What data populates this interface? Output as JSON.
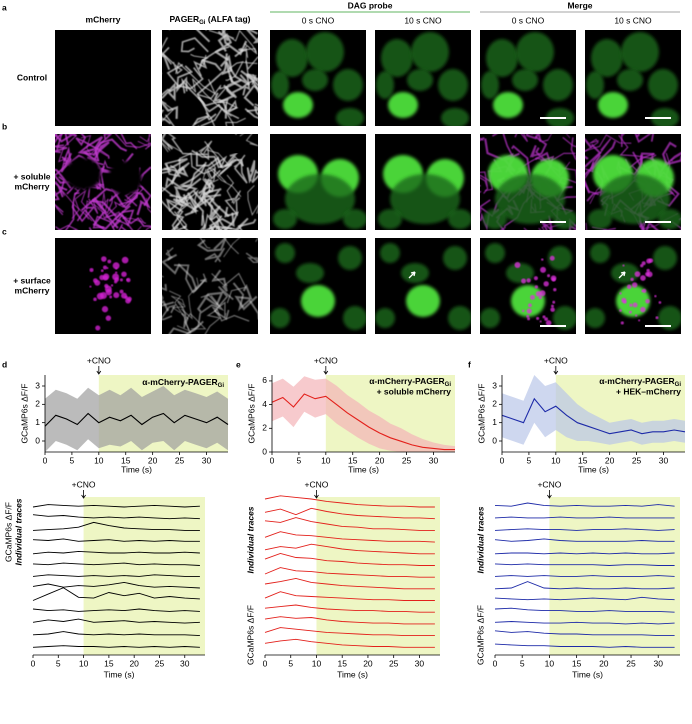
{
  "figure": {
    "panel_letters": [
      "a",
      "b",
      "c",
      "d",
      "e",
      "f"
    ],
    "headers": {
      "mcherry": "mCherry",
      "pager": "PAGER",
      "pager_sub": "Gi",
      "pager_rest": " (ALFA tag)",
      "dag": "DAG probe",
      "merge": "Merge",
      "dag_t0": "0 s CNO",
      "dag_t10": "10 s CNO",
      "merge_t0": "0 s CNO",
      "merge_t10": "10 s CNO"
    },
    "rows": [
      {
        "label": [
          "Control"
        ]
      },
      {
        "label": [
          "+ soluble",
          "mCherry"
        ]
      },
      {
        "label": [
          "+ surface",
          "mCherry"
        ]
      }
    ]
  },
  "charts": [
    {
      "type": "line",
      "title": "α-mCherry-PAGER",
      "title_sub": "Gi",
      "color": "#000000",
      "band_color": "#9e9e9e",
      "shade_color": "#eef6c4",
      "cno_time": 10,
      "top": {
        "ylabel": "GCaMP6s ΔF/F",
        "xlabel": "Time (s)",
        "annotation": "+CNO",
        "xlim": [
          0,
          34
        ],
        "ylim": [
          -0.6,
          3.6
        ],
        "xticks": [
          0,
          5,
          10,
          15,
          20,
          25,
          30
        ],
        "yticks": [
          0,
          1,
          2,
          3
        ],
        "x": [
          0,
          2,
          4,
          6,
          8,
          10,
          12,
          14,
          16,
          18,
          20,
          22,
          24,
          26,
          28,
          30,
          32,
          34
        ],
        "values": [
          0.8,
          1.4,
          1.2,
          0.9,
          1.5,
          1.0,
          1.3,
          1.1,
          1.4,
          0.9,
          1.3,
          1.5,
          1.0,
          1.4,
          1.2,
          1.0,
          1.3,
          0.9
        ],
        "upper": [
          2.3,
          2.8,
          2.6,
          2.3,
          2.9,
          2.5,
          2.8,
          2.5,
          2.9,
          2.4,
          2.7,
          3.0,
          2.5,
          2.8,
          2.6,
          2.4,
          2.7,
          2.3
        ],
        "lower": [
          -0.6,
          0.0,
          -0.2,
          -0.5,
          0.1,
          -0.4,
          -0.2,
          -0.3,
          0.0,
          -0.5,
          -0.1,
          0.0,
          -0.5,
          0.0,
          -0.2,
          -0.4,
          -0.1,
          -0.5
        ]
      },
      "traces": {
        "ylabel_italic": "Individual traces",
        "ylabel": "GCaMP6s ΔF/F",
        "xlabel": "Time (s)",
        "annotation": "+CNO",
        "xlim": [
          0,
          34
        ],
        "xticks": [
          0,
          5,
          10,
          15,
          20,
          25,
          30
        ],
        "x": [
          0,
          3,
          6,
          9,
          12,
          15,
          18,
          21,
          24,
          27,
          30,
          33
        ],
        "series": [
          [
            0,
            0.3,
            0.2,
            0.1,
            0.2,
            0.1,
            0,
            0.1,
            0.2,
            0.1,
            0,
            0.1
          ],
          [
            0.5,
            0.3,
            0.4,
            0.2,
            0.1,
            0.2,
            0.1,
            0.2,
            0.1,
            0,
            0.1,
            0
          ],
          [
            0,
            0.1,
            0.2,
            0.4,
            1.0,
            0.6,
            0.3,
            0.2,
            0.1,
            0.1,
            0,
            0
          ],
          [
            0.3,
            0.2,
            0.4,
            0.1,
            0.2,
            0.3,
            0.1,
            0.2,
            0.1,
            0.2,
            0.1,
            0.1
          ],
          [
            0,
            0.2,
            0.1,
            0.3,
            0.2,
            0.1,
            0.1,
            0.2,
            0.1,
            0.1,
            0.2,
            0.1
          ],
          [
            0.2,
            0.1,
            0.3,
            0.2,
            0.1,
            0.2,
            0.3,
            0.1,
            0.2,
            0.1,
            0.1,
            0
          ],
          [
            0.1,
            0.3,
            0.2,
            0.1,
            0.2,
            0.1,
            0.2,
            0.1,
            0.3,
            0.2,
            0.1,
            0.1
          ],
          [
            0.3,
            0.6,
            0.2,
            0.4,
            0.3,
            0.5,
            0.8,
            0.4,
            0.2,
            0.3,
            0.2,
            0.1
          ],
          [
            0,
            0.8,
            1.6,
            0.4,
            0.3,
            1.0,
            0.6,
            0.9,
            0.3,
            0.5,
            0.3,
            0.2
          ],
          [
            0.4,
            0.2,
            0.3,
            0.1,
            0.2,
            0.3,
            0.2,
            0.4,
            0.2,
            0.1,
            0.2,
            0.1
          ],
          [
            0.2,
            0.5,
            0.3,
            0.6,
            0.2,
            0.3,
            0.4,
            0.2,
            0.3,
            0.2,
            0.1,
            0.2
          ],
          [
            0.1,
            0.2,
            0.5,
            0.2,
            0.1,
            0.2,
            0.1,
            0.2,
            0.1,
            0.1,
            0.1,
            0
          ],
          [
            0,
            0.1,
            0.2,
            0.1,
            0.1,
            0,
            0.1,
            0,
            0.1,
            0,
            0.1,
            0
          ]
        ]
      }
    },
    {
      "type": "line",
      "title": "α-mCherry-PAGER",
      "title_sub": "Gi",
      "subtitle": "+ soluble mCherry",
      "color": "#e3201b",
      "band_color": "#f4b3b8",
      "shade_color": "#eef6c4",
      "cno_time": 10,
      "top": {
        "ylabel": "GCaMP6s ΔF/F",
        "xlabel": "Time (s)",
        "annotation": "+CNO",
        "xlim": [
          0,
          34
        ],
        "ylim": [
          0,
          6.5
        ],
        "xticks": [
          0,
          5,
          10,
          15,
          20,
          25,
          30
        ],
        "yticks": [
          0,
          2,
          4,
          6
        ],
        "x": [
          0,
          2,
          4,
          6,
          8,
          10,
          12,
          14,
          16,
          18,
          20,
          22,
          24,
          26,
          28,
          30,
          32,
          34
        ],
        "values": [
          4.2,
          4.6,
          3.8,
          4.9,
          4.5,
          4.7,
          4.0,
          3.3,
          2.7,
          2.1,
          1.6,
          1.2,
          0.9,
          0.6,
          0.4,
          0.3,
          0.2,
          0.2
        ],
        "upper": [
          5.8,
          6.2,
          5.5,
          6.4,
          6.1,
          6.2,
          5.6,
          4.8,
          4.2,
          3.5,
          3.0,
          2.4,
          2.0,
          1.5,
          1.1,
          0.8,
          0.6,
          0.5
        ],
        "lower": [
          2.6,
          3.0,
          2.1,
          3.4,
          2.9,
          3.2,
          2.4,
          1.8,
          1.2,
          0.7,
          0.3,
          0.1,
          0,
          0,
          0,
          0,
          0,
          0
        ]
      },
      "traces": {
        "ylabel_italic": "Individual traces",
        "ylabel": "GCaMP6s ΔF/F",
        "xlabel": "Time (s)",
        "annotation": "+CNO",
        "xlim": [
          0,
          34
        ],
        "xticks": [
          0,
          5,
          10,
          15,
          20,
          25,
          30
        ],
        "x": [
          0,
          3,
          6,
          9,
          12,
          15,
          18,
          21,
          24,
          27,
          30,
          33
        ],
        "series": [
          [
            1.0,
            1.4,
            1.2,
            1.0,
            0.7,
            0.5,
            0.3,
            0.2,
            0.1,
            0.1,
            0,
            0
          ],
          [
            0.8,
            1.2,
            0.5,
            1.3,
            0.9,
            0.6,
            0.4,
            0.3,
            0.2,
            0.1,
            0.1,
            0
          ],
          [
            1.2,
            1.0,
            1.6,
            1.1,
            0.8,
            0.5,
            0.4,
            0.2,
            0.2,
            0.1,
            0,
            0
          ],
          [
            0.6,
            1.3,
            0.9,
            0.8,
            0.6,
            0.4,
            0.3,
            0.2,
            0.1,
            0.1,
            0.1,
            0
          ],
          [
            0.5,
            0.9,
            0.7,
            1.2,
            0.9,
            0.6,
            0.4,
            0.3,
            0.2,
            0.1,
            0,
            0
          ],
          [
            0.8,
            1.5,
            1.0,
            0.9,
            0.6,
            0.5,
            0.3,
            0.2,
            0.1,
            0.1,
            0,
            0
          ],
          [
            0.4,
            1.2,
            0.8,
            0.7,
            0.5,
            0.4,
            0.3,
            0.2,
            0.1,
            0.1,
            0,
            0
          ],
          [
            0.6,
            0.9,
            1.3,
            0.8,
            0.6,
            0.4,
            0.3,
            0.2,
            0.1,
            0,
            0,
            0
          ],
          [
            0.3,
            1.1,
            0.6,
            0.5,
            0.4,
            0.3,
            0.2,
            0.1,
            0.1,
            0,
            0,
            0
          ],
          [
            0.5,
            0.7,
            0.9,
            0.6,
            0.4,
            0.3,
            0.2,
            0.2,
            0.1,
            0.1,
            0,
            0
          ],
          [
            0.6,
            0.9,
            0.7,
            0.8,
            0.5,
            0.3,
            0.2,
            0.1,
            0.1,
            0,
            0,
            0
          ],
          [
            0.4,
            1.0,
            0.8,
            0.6,
            0.4,
            0.3,
            0.2,
            0.1,
            0.1,
            0,
            0,
            0
          ],
          [
            0.5,
            0.8,
            1.0,
            0.7,
            0.5,
            0.3,
            0.2,
            0.1,
            0.1,
            0,
            0,
            0
          ]
        ]
      }
    },
    {
      "type": "line",
      "title": "α-mCherry-PAGER",
      "title_sub": "Gi",
      "subtitle": "+ HEK–mCherry",
      "color": "#1d2aa8",
      "band_color": "#b9c6e8",
      "shade_color": "#eef6c4",
      "cno_time": 10,
      "top": {
        "ylabel": "GCaMP6s ΔF/F",
        "xlabel": "Time (s)",
        "annotation": "+CNO",
        "xlim": [
          0,
          34
        ],
        "ylim": [
          -0.6,
          3.6
        ],
        "xticks": [
          0,
          5,
          10,
          15,
          20,
          25,
          30
        ],
        "yticks": [
          0,
          1,
          2,
          3
        ],
        "x": [
          0,
          2,
          4,
          6,
          8,
          10,
          12,
          14,
          16,
          18,
          20,
          22,
          24,
          26,
          28,
          30,
          32,
          34
        ],
        "values": [
          1.4,
          1.2,
          1.0,
          2.3,
          1.6,
          1.9,
          1.4,
          1.0,
          0.8,
          0.6,
          0.4,
          0.5,
          0.6,
          0.4,
          0.5,
          0.5,
          0.6,
          0.5
        ],
        "upper": [
          2.6,
          2.4,
          2.2,
          3.6,
          3.0,
          3.2,
          2.6,
          2.0,
          1.6,
          1.3,
          1.0,
          1.1,
          1.2,
          1.0,
          1.1,
          1.1,
          1.2,
          1.1
        ],
        "lower": [
          0.2,
          0.0,
          -0.2,
          1.0,
          0.2,
          0.6,
          0.2,
          0.0,
          0.0,
          -0.1,
          -0.2,
          -0.1,
          0.0,
          -0.2,
          -0.1,
          -0.1,
          0.0,
          -0.1
        ]
      },
      "traces": {
        "ylabel_italic": "Individual traces",
        "ylabel": "GCaMP6s ΔF/F",
        "xlabel": "Time (s)",
        "annotation": "+CNO",
        "xlim": [
          0,
          34
        ],
        "xticks": [
          0,
          5,
          10,
          15,
          20,
          25,
          30
        ],
        "x": [
          0,
          3,
          6,
          9,
          12,
          15,
          18,
          21,
          24,
          27,
          30,
          33
        ],
        "series": [
          [
            0.2,
            0.1,
            0.5,
            0.2,
            0.1,
            0.2,
            0.1,
            0.1,
            0.2,
            0.1,
            0.3,
            0.1
          ],
          [
            0.1,
            0.2,
            0.1,
            0.1,
            0.2,
            0.1,
            0.1,
            0.2,
            0.1,
            0.1,
            0.1,
            0.1
          ],
          [
            0,
            0.1,
            0.2,
            0.1,
            0.1,
            0,
            0.1,
            0.1,
            0.2,
            0.1,
            0,
            0.1
          ],
          [
            0.3,
            0.1,
            0.2,
            0.4,
            0.2,
            0.1,
            0.1,
            0.1,
            0.1,
            0.2,
            0.1,
            0.1
          ],
          [
            0,
            0.1,
            0.1,
            0,
            0.1,
            0,
            0.1,
            0,
            0.1,
            0,
            0,
            0.1
          ],
          [
            0.2,
            0.1,
            0.2,
            0.1,
            0.1,
            0.1,
            0.1,
            0,
            0.1,
            0.1,
            0,
            0
          ],
          [
            0.1,
            0.2,
            0.1,
            0.2,
            0.1,
            0.1,
            0.2,
            0.1,
            0.1,
            0.1,
            0.2,
            0.1
          ],
          [
            0,
            0.1,
            0.9,
            0.1,
            0,
            0.1,
            0,
            0,
            0.1,
            0,
            0,
            0.1
          ],
          [
            0.3,
            0.2,
            0.1,
            0.2,
            0.1,
            0.2,
            0.3,
            0.2,
            0.1,
            0.4,
            0.2,
            0.1
          ],
          [
            0.4,
            0.5,
            0.3,
            0.2,
            0.2,
            0.1,
            0.1,
            0.2,
            0.1,
            0.1,
            0.1,
            0
          ],
          [
            0.2,
            0.3,
            0.2,
            0.1,
            0.1,
            0.2,
            0.1,
            0.1,
            0,
            0.1,
            0,
            0.1
          ],
          [
            0.6,
            0.4,
            0.5,
            0.3,
            0.2,
            0.2,
            0.1,
            0.1,
            0.1,
            0.1,
            0,
            0
          ],
          [
            0.4,
            0.3,
            0.2,
            0.2,
            0.1,
            0.1,
            0.1,
            0,
            0.1,
            0,
            0,
            0
          ]
        ]
      }
    }
  ]
}
